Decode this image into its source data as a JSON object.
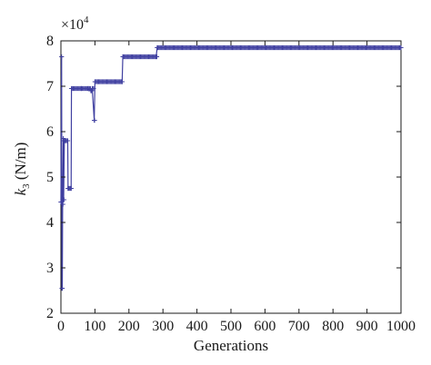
{
  "chart_data": {
    "type": "line",
    "title": "",
    "xlabel": "Generations",
    "ylabel": {
      "var": "k",
      "sub": "3",
      "unit": " (N/m)"
    },
    "multiplier": {
      "base": "×10",
      "exp": "4"
    },
    "xlim": [
      0,
      1000
    ],
    "ylim": [
      2,
      8
    ],
    "xticks": [
      0,
      100,
      200,
      300,
      400,
      500,
      600,
      700,
      800,
      900,
      1000
    ],
    "yticks": [
      2,
      3,
      4,
      5,
      6,
      7,
      8
    ],
    "grid": false,
    "color": "#3f3fa0",
    "marker": "plus",
    "series": [
      {
        "points": [
          [
            0,
            4.45
          ],
          [
            2,
            7.65
          ],
          [
            3,
            2.55
          ],
          [
            4,
            2.55
          ],
          [
            5,
            4.4
          ],
          [
            7,
            5.85
          ],
          [
            8,
            4.5
          ],
          [
            10,
            5.8
          ],
          [
            20,
            5.8
          ],
          [
            21,
            4.75
          ],
          [
            30,
            4.75
          ],
          [
            31,
            6.95
          ],
          [
            60,
            6.95
          ],
          [
            80,
            6.95
          ],
          [
            88,
            6.9
          ],
          [
            92,
            6.95
          ],
          [
            98,
            6.25
          ],
          [
            100,
            7.1
          ],
          [
            180,
            7.1
          ],
          [
            182,
            7.65
          ],
          [
            280,
            7.65
          ],
          [
            283,
            7.85
          ],
          [
            1000,
            7.85
          ]
        ]
      }
    ]
  }
}
